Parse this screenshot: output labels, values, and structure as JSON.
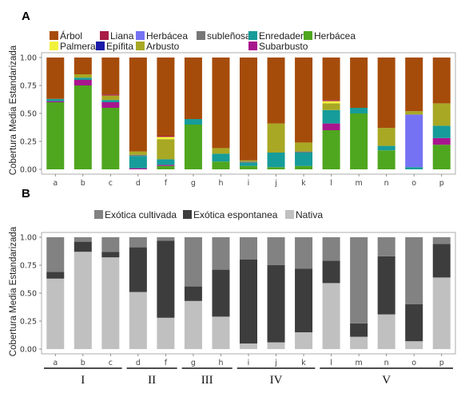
{
  "chart_data": [
    {
      "panel": "A",
      "type": "bar",
      "stacked": true,
      "ylabel": "Cobertura Media Estandarizada",
      "ylim": [
        0,
        1
      ],
      "yticks": [
        "0.00",
        "0.25",
        "0.50",
        "0.75",
        "1.00"
      ],
      "categories": [
        "a",
        "b",
        "c",
        "d",
        "f",
        "g",
        "h",
        "i",
        "j",
        "k",
        "l",
        "m",
        "n",
        "o",
        "p"
      ],
      "legend_placement": "top",
      "series": [
        {
          "name": "Herbácea",
          "color": "#4fa61f",
          "values": [
            0.6,
            0.75,
            0.55,
            0.0,
            0.03,
            0.4,
            0.07,
            0.03,
            0.02,
            0.03,
            0.35,
            0.5,
            0.17,
            0.0,
            0.22
          ]
        },
        {
          "name": "Subarbusto",
          "color": "#a8168e",
          "values": [
            0.01,
            0.05,
            0.05,
            0.01,
            0.01,
            0.0,
            0.0,
            0.0,
            0.0,
            0.0,
            0.06,
            0.0,
            0.0,
            0.0,
            0.06
          ]
        },
        {
          "name": "Enredadera",
          "color": "#169c9a",
          "values": [
            0.02,
            0.02,
            0.02,
            0.11,
            0.05,
            0.05,
            0.07,
            0.03,
            0.13,
            0.12,
            0.12,
            0.05,
            0.04,
            0.02,
            0.11
          ]
        },
        {
          "name": "subleñosa",
          "color": "#777777",
          "values": [
            0.0,
            0.0,
            0.0,
            0.01,
            0.0,
            0.0,
            0.0,
            0.01,
            0.0,
            0.01,
            0.0,
            0.0,
            0.0,
            0.0,
            0.0
          ]
        },
        {
          "name": "Herbácea",
          "color": "#7572f4",
          "values": [
            0.0,
            0.0,
            0.0,
            0.0,
            0.0,
            0.0,
            0.0,
            0.0,
            0.0,
            0.0,
            0.0,
            0.0,
            0.0,
            0.47,
            0.0
          ]
        },
        {
          "name": "Arbusto",
          "color": "#a8a824",
          "values": [
            0.0,
            0.03,
            0.04,
            0.03,
            0.18,
            0.0,
            0.05,
            0.01,
            0.26,
            0.08,
            0.06,
            0.0,
            0.16,
            0.03,
            0.2
          ]
        },
        {
          "name": "Epífita",
          "color": "#1a1aa8",
          "values": [
            0.0,
            0.0,
            0.0,
            0.0,
            0.0,
            0.0,
            0.0,
            0.0,
            0.0,
            0.0,
            0.0,
            0.0,
            0.0,
            0.0,
            0.0
          ]
        },
        {
          "name": "Palmera",
          "color": "#f2f23c",
          "values": [
            0.0,
            0.0,
            0.0,
            0.0,
            0.02,
            0.0,
            0.0,
            0.0,
            0.0,
            0.0,
            0.02,
            0.0,
            0.0,
            0.0,
            0.0
          ]
        },
        {
          "name": "Liana",
          "color": "#a81c46",
          "values": [
            0.0,
            0.0,
            0.01,
            0.0,
            0.01,
            0.0,
            0.0,
            0.0,
            0.0,
            0.0,
            0.01,
            0.0,
            0.0,
            0.0,
            0.0
          ]
        },
        {
          "name": "Árbol",
          "color": "#a64c0a",
          "values": [
            0.37,
            0.15,
            0.33,
            0.84,
            0.7,
            0.55,
            0.81,
            0.92,
            0.59,
            0.76,
            0.38,
            0.45,
            0.63,
            0.48,
            0.41
          ]
        }
      ],
      "legend": [
        {
          "name": "Árbol",
          "color": "#a64c0a"
        },
        {
          "name": "Liana",
          "color": "#a81c46"
        },
        {
          "name": "Herbácea",
          "color": "#7572f4"
        },
        {
          "name": "subleñosa",
          "color": "#777777"
        },
        {
          "name": "Enredadera",
          "color": "#169c9a"
        },
        {
          "name": "Herbácea",
          "color": "#4fa61f"
        },
        {
          "name": "Palmera",
          "color": "#f2f23c"
        },
        {
          "name": "Epífita",
          "color": "#1a1aa8"
        },
        {
          "name": "Arbusto",
          "color": "#a8a824"
        },
        {
          "name": "Subarbusto",
          "color": "#a8168e"
        }
      ]
    },
    {
      "panel": "B",
      "type": "bar",
      "stacked": true,
      "ylabel": "Cobertura Media Estandarizada",
      "ylim": [
        0,
        1
      ],
      "yticks": [
        "0.00",
        "0.25",
        "0.50",
        "0.75",
        "1.00"
      ],
      "categories": [
        "a",
        "b",
        "c",
        "d",
        "f",
        "g",
        "h",
        "i",
        "j",
        "k",
        "l",
        "m",
        "n",
        "o",
        "p"
      ],
      "legend_placement": "top",
      "series": [
        {
          "name": "Nativa",
          "color": "#c0c0c0",
          "values": [
            0.63,
            0.87,
            0.82,
            0.51,
            0.28,
            0.43,
            0.29,
            0.05,
            0.06,
            0.15,
            0.59,
            0.11,
            0.31,
            0.07,
            0.64
          ]
        },
        {
          "name": "Exótica espontanea",
          "color": "#3d3d3d",
          "values": [
            0.06,
            0.09,
            0.05,
            0.4,
            0.69,
            0.13,
            0.42,
            0.75,
            0.69,
            0.57,
            0.2,
            0.12,
            0.52,
            0.33,
            0.3
          ]
        },
        {
          "name": "Exótica cultivada",
          "color": "#828282",
          "values": [
            0.31,
            0.04,
            0.13,
            0.09,
            0.03,
            0.44,
            0.29,
            0.2,
            0.25,
            0.28,
            0.21,
            0.77,
            0.17,
            0.6,
            0.06
          ]
        }
      ],
      "legend": [
        {
          "name": "Exótica cultivada",
          "color": "#828282"
        },
        {
          "name": "Exótica espontanea",
          "color": "#3d3d3d"
        },
        {
          "name": "Nativa",
          "color": "#c0c0c0"
        }
      ],
      "groups": [
        {
          "label": "I",
          "first": 0,
          "last": 2
        },
        {
          "label": "II",
          "first": 3,
          "last": 4
        },
        {
          "label": "III",
          "first": 5,
          "last": 6
        },
        {
          "label": "IV",
          "first": 7,
          "last": 9
        },
        {
          "label": "V",
          "first": 10,
          "last": 14
        }
      ]
    }
  ],
  "panels": {
    "a_label": "A",
    "b_label": "B"
  }
}
